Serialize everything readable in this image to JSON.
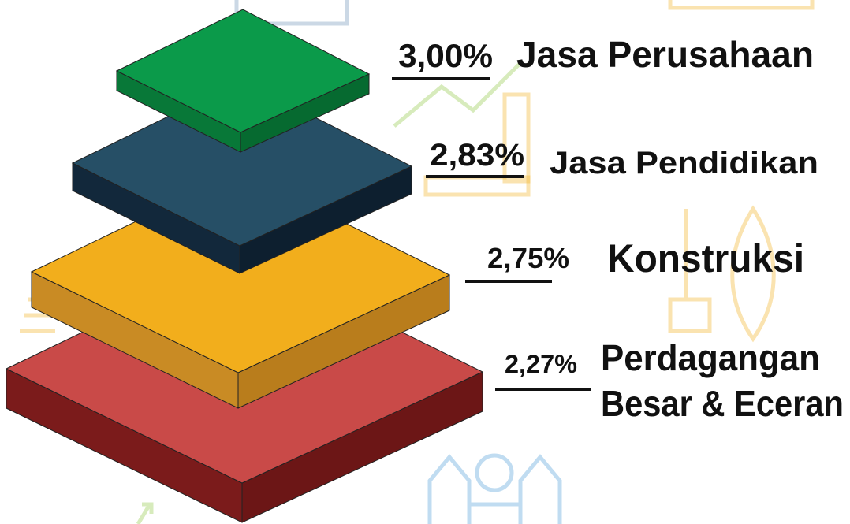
{
  "layers": [
    {
      "value": "3,00%",
      "label": [
        "Jasa Perusahaan"
      ]
    },
    {
      "value": "2,83%",
      "label": [
        "Jasa Pendidikan"
      ]
    },
    {
      "value": "2,75%",
      "label": [
        "Konstruksi"
      ]
    },
    {
      "value": "2,27%",
      "label": [
        "Perdagangan",
        "Besar & Eceran"
      ]
    }
  ]
}
